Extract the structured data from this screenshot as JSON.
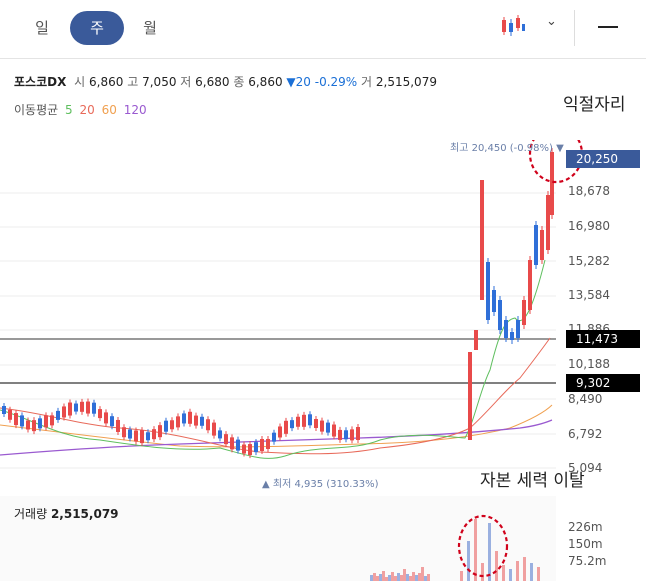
{
  "tabs": {
    "day": "일",
    "week": "주",
    "month": "월"
  },
  "stock": {
    "name": "포스코DX",
    "open_label": "시",
    "open": "6,860",
    "high_label": "고",
    "high": "7,050",
    "low_label": "저",
    "low": "6,680",
    "close_label": "종",
    "close": "6,860",
    "change": "▼20 -0.29%",
    "volume_label": "거",
    "volume": "2,515,079"
  },
  "moving_avg": {
    "label": "이동평균",
    "p5": "5",
    "p20": "20",
    "p60": "60",
    "p120": "120"
  },
  "annotations": {
    "top": "익절자리",
    "bottom": "자본 세력 이탈"
  },
  "chart": {
    "high_marker": "최고 20,450 (-0.98%) ▼",
    "low_marker": "▲ 최저 4,935 (310.33%)",
    "current_price": "20,250",
    "hline1": "11,473",
    "hline2": "9,302",
    "y_ticks": [
      "18,678",
      "16,980",
      "15,282",
      "13,584",
      "11,886",
      "10,188",
      "8,490",
      "6,792",
      "5,094"
    ]
  },
  "volume_panel": {
    "label": "거래량",
    "value": "2,515,079",
    "ticks": [
      "226m",
      "150m",
      "75.2m"
    ]
  },
  "colors": {
    "up": "#e84a4a",
    "down": "#2f6fd8",
    "accent": "#3a5a9a",
    "ma5": "#5fbf5f",
    "ma20": "#e86a5a",
    "ma60": "#f0a050",
    "ma120": "#9a5ad0"
  }
}
